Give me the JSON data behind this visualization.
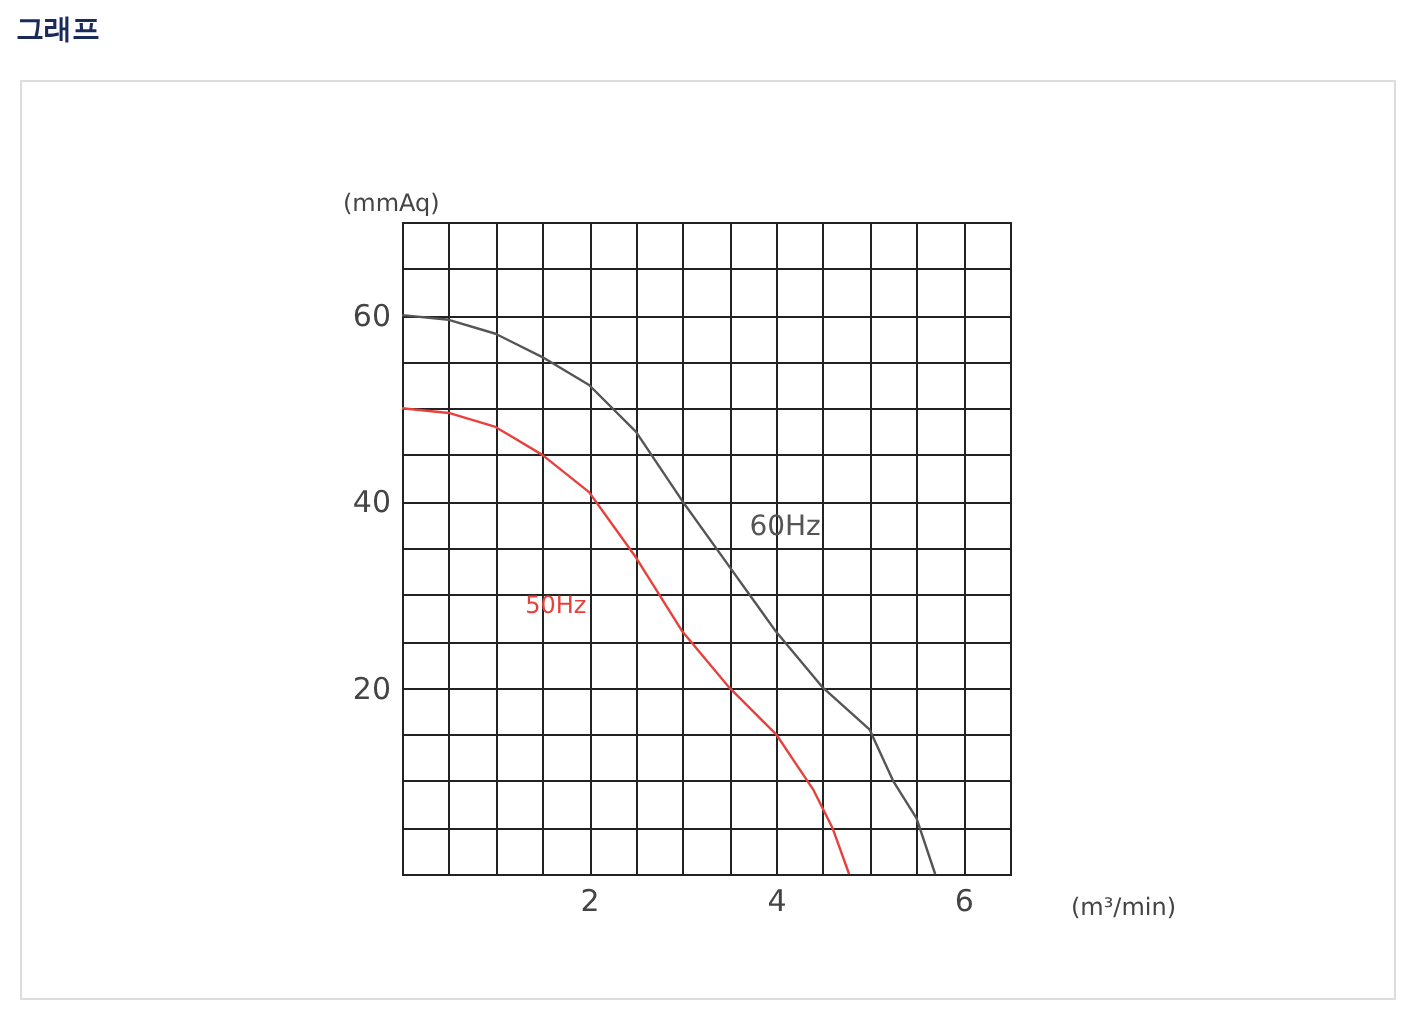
{
  "chart_data": {
    "type": "line",
    "title": "그래프",
    "xlabel": "(m³/min)",
    "ylabel": "(mmAq)",
    "xlim": [
      0,
      6.5
    ],
    "ylim": [
      0,
      70
    ],
    "xticks": [
      {
        "value": 0,
        "label": null
      },
      {
        "value": 0.5,
        "label": null
      },
      {
        "value": 1,
        "label": null
      },
      {
        "value": 1.5,
        "label": null
      },
      2,
      {
        "value": 2.5,
        "label": null
      },
      {
        "value": 3,
        "label": null
      },
      {
        "value": 3.5,
        "label": null
      },
      4,
      {
        "value": 4.5,
        "label": null
      },
      {
        "value": 5,
        "label": null
      },
      {
        "value": 5.5,
        "label": null
      },
      6,
      {
        "value": 6.5,
        "label": null
      }
    ],
    "yticks": [
      {
        "value": 0,
        "label": null
      },
      {
        "value": 5,
        "label": null
      },
      {
        "value": 10,
        "label": null
      },
      {
        "value": 15,
        "label": null
      },
      20,
      {
        "value": 25,
        "label": null
      },
      {
        "value": 30,
        "label": null
      },
      {
        "value": 35,
        "label": null
      },
      40,
      {
        "value": 45,
        "label": null
      },
      {
        "value": 50,
        "label": null
      },
      {
        "value": 55,
        "label": null
      },
      60,
      {
        "value": 65,
        "label": null
      },
      {
        "value": 70,
        "label": null
      }
    ],
    "grid": true,
    "legend": false,
    "marker": "none",
    "line_style": "solid",
    "series": [
      {
        "name": "60Hz",
        "color": "#555555",
        "x": [
          0,
          0.5,
          1,
          1.5,
          2,
          2.5,
          3,
          3.5,
          4,
          4.5,
          5,
          5.25,
          5.5,
          5.7
        ],
        "values": [
          60,
          59.5,
          58,
          55.5,
          52.5,
          47.5,
          40,
          33,
          26,
          20,
          15.5,
          10,
          6,
          0
        ]
      },
      {
        "name": "50Hz",
        "color": "#e8413c",
        "x": [
          0,
          0.5,
          1,
          1.5,
          2,
          2.5,
          3,
          3.5,
          4,
          4.4,
          4.6,
          4.78
        ],
        "values": [
          50,
          49.5,
          48,
          45,
          41,
          34,
          26,
          20,
          15,
          9,
          5,
          0
        ]
      }
    ]
  }
}
